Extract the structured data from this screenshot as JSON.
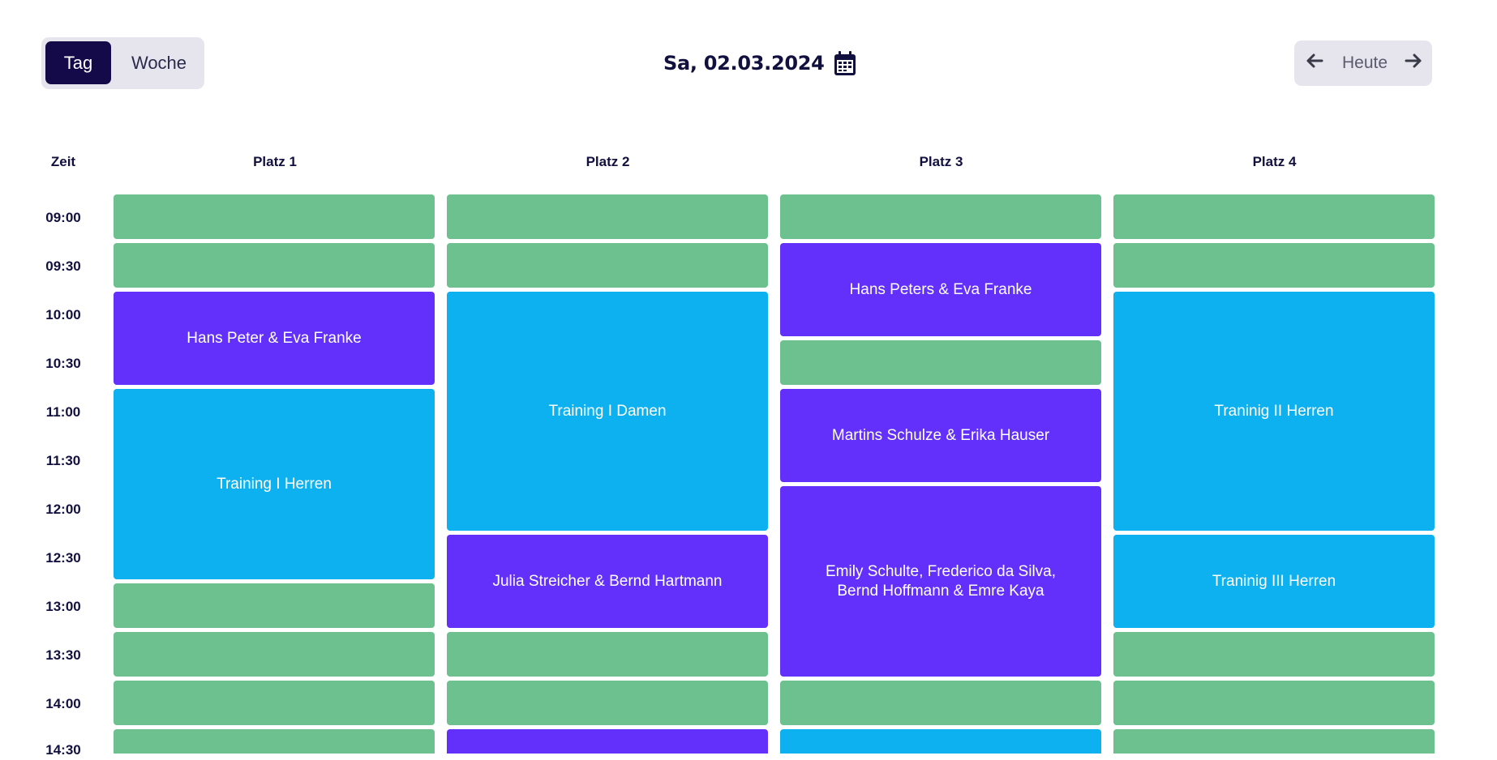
{
  "view_toggle": {
    "day_label": "Tag",
    "week_label": "Woche",
    "selected": "Tag"
  },
  "header": {
    "date": "Sa, 02.03.2024",
    "calendar_icon": "calendar-icon"
  },
  "nav": {
    "prev_icon": "arrow-left-icon",
    "today_label": "Heute",
    "next_icon": "arrow-right-icon"
  },
  "grid": {
    "time_header": "Zeit",
    "columns": [
      "Platz 1",
      "Platz 2",
      "Platz 3",
      "Platz 4"
    ],
    "times": [
      "09:00",
      "09:30",
      "10:00",
      "10:30",
      "11:00",
      "11:30",
      "12:00",
      "12:30",
      "13:00",
      "13:30",
      "14:00",
      "14:30"
    ]
  },
  "colors": {
    "free": "#6cc18e",
    "booked": "#6330fb",
    "training": "#0db1ef",
    "accent_dark": "#140a4a"
  },
  "bookings": {
    "p1_booking": "Hans Peter & Eva Franke",
    "p1_training": "Training I Herren",
    "p2_training": "Training I Damen",
    "p2_booking": "Julia Streicher & Bernd Hartmann",
    "p3_booking1": "Hans Peters & Eva Franke",
    "p3_booking2": "Martins Schulze & Erika Hauser",
    "p3_booking3_line1": "Emily Schulte, Frederico da Silva,",
    "p3_booking3_line2": "Bernd Hoffmann & Emre Kaya",
    "p4_training1": "Traninig II Herren",
    "p4_training2": "Traninig III Herren"
  }
}
